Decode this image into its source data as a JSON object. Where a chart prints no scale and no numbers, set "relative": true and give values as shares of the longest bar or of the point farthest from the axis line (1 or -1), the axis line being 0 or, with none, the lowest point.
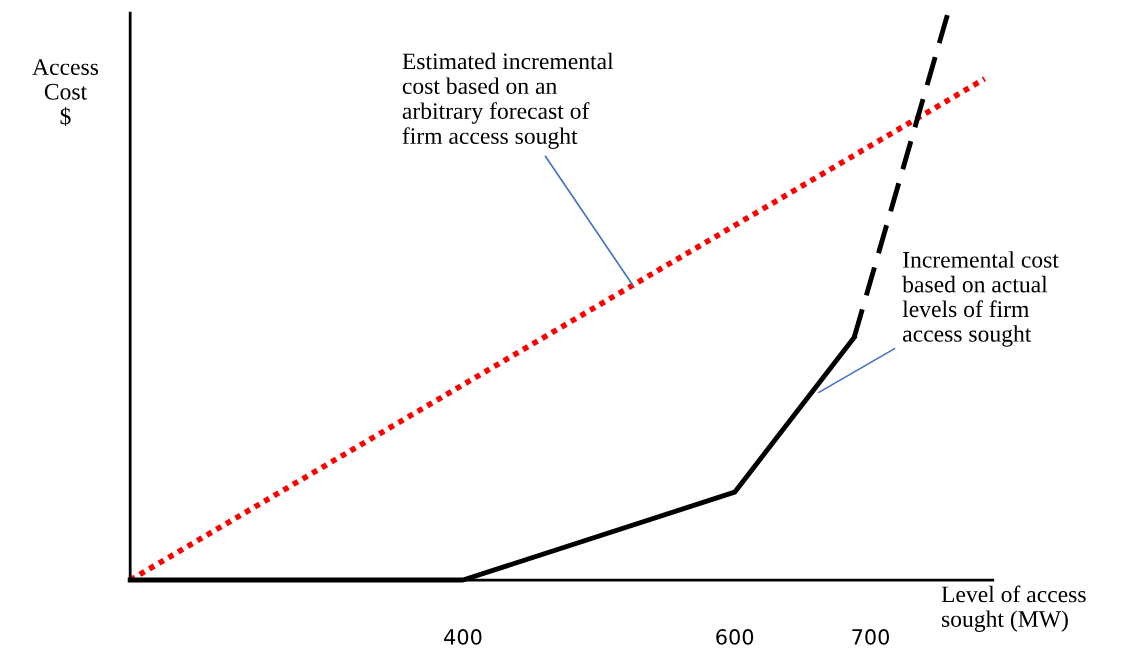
{
  "chart_data": {
    "type": "line",
    "relative": true,
    "xlabel": "Level of access sought (MW)",
    "ylabel": "Access\nCost\n$",
    "xlim": [
      155,
      790
    ],
    "xticks": [
      400,
      600,
      700
    ],
    "tick_labels": "x",
    "grid": false,
    "legend": false,
    "marker": "none",
    "series": [
      {
        "color": "#ff0000",
        "line_style": "dotted",
        "x": [
          155,
          784
        ],
        "values": [
          0,
          0.884
        ]
      },
      {
        "color": "#000000",
        "line_style": "solid",
        "x": [
          155,
          400,
          600,
          688
        ],
        "values": [
          0,
          0,
          0.155,
          0.428
        ]
      },
      {
        "color": "#000000",
        "line_style": "dashed",
        "x": [
          688,
          757
        ],
        "values": [
          0.428,
          1
        ]
      }
    ],
    "annotations": [
      {
        "text": "Estimated incremental\ncost based on an\narbitrary forecast of\nfirm access sought",
        "x": 525,
        "y": 0.52
      },
      {
        "text": "Incremental cost\nbased on actual\nlevels of firm\naccess sought",
        "x": 662,
        "y": 0.331
      }
    ]
  }
}
